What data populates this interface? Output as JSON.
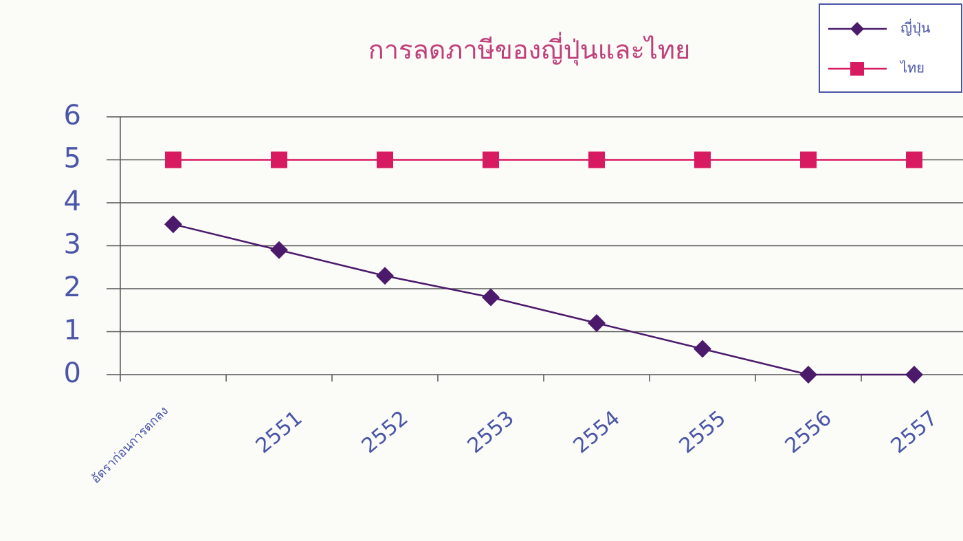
{
  "chart_data": {
    "type": "line",
    "title": "การลดภาษีของญี่ปุ่นและไทย",
    "categories": [
      "อัตราก่อนการตกลง",
      "2551",
      "2552",
      "2553",
      "2554",
      "2555",
      "2556",
      "2557"
    ],
    "series": [
      {
        "name": "ญี่ปุ่น",
        "color": "#4b1a6b",
        "marker": "diamond",
        "values": [
          3.5,
          2.9,
          2.3,
          1.8,
          1.2,
          0.6,
          0,
          0
        ]
      },
      {
        "name": "ไทย",
        "color": "#d81b60",
        "marker": "square",
        "values": [
          5,
          5,
          5,
          5,
          5,
          5,
          5,
          5
        ]
      }
    ],
    "ylim": [
      0,
      6
    ],
    "yticks": [
      0,
      1,
      2,
      3,
      4,
      5,
      6
    ],
    "grid": true
  }
}
